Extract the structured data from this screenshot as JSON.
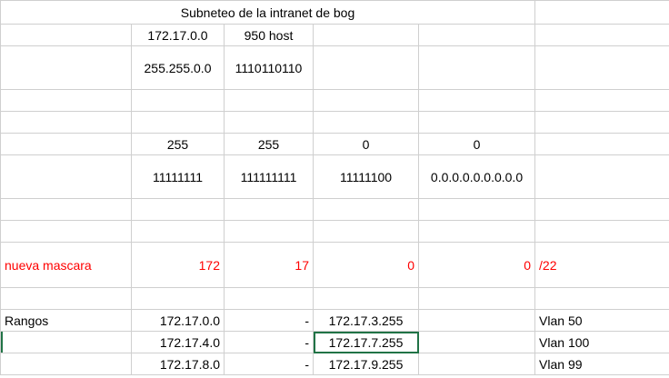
{
  "title": "Subneteo de la intranet de bog",
  "rows": {
    "r1": {
      "c2": "172.17.0.0",
      "c3": "950 host"
    },
    "r2": {
      "c2": "255.255.0.0",
      "c3": "1110110110"
    },
    "r5": {
      "c2": "255",
      "c3": "255",
      "c4": "0",
      "c5": "0"
    },
    "r6": {
      "c2": "11111111",
      "c3": "111111111",
      "c4": "11111100",
      "c5": "0.0.0.0.0.0.0.0.0"
    },
    "r9": {
      "c1": "nueva mascara",
      "c2": "172",
      "c3": "17",
      "c4": "0",
      "c5": "0",
      "c6": "/22"
    },
    "r11": {
      "c1": "Rangos",
      "c2": "172.17.0.0",
      "c3": "-",
      "c4": "172.17.3.255",
      "c6": "Vlan 50"
    },
    "r12": {
      "c2": "172.17.4.0",
      "c3": "-",
      "c4": "172.17.7.255",
      "c6": "Vlan 100"
    },
    "r13": {
      "c2": "172.17.8.0",
      "c3": "-",
      "c4": "172.17.9.255",
      "c6": "Vlan 99"
    }
  },
  "colors": {
    "red": "#ff0000",
    "selection": "#217346",
    "gridline": "#cfcfcf"
  }
}
